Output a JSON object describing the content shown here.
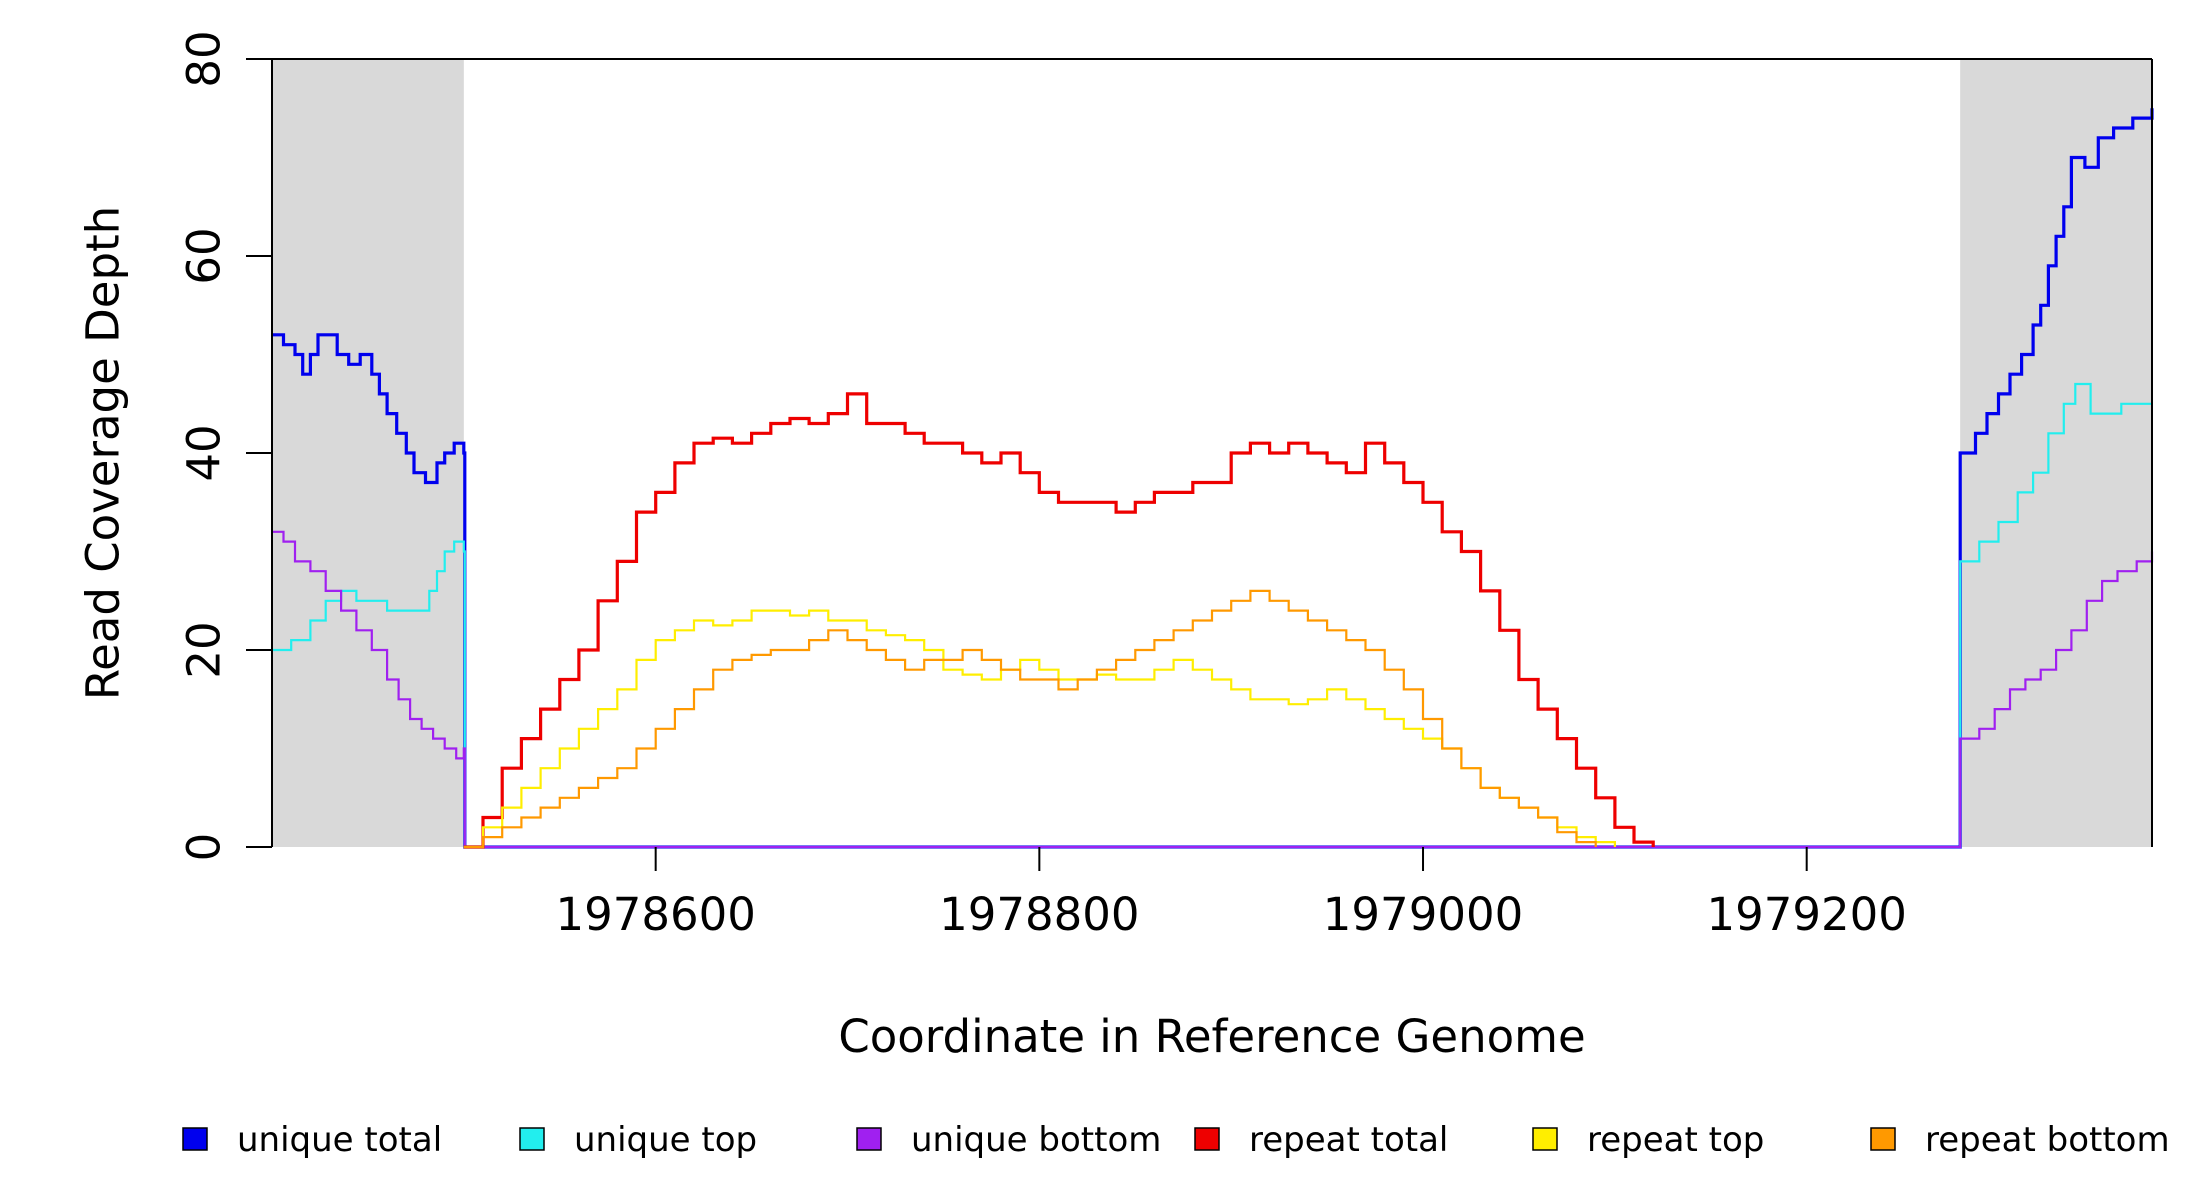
{
  "chart_data": {
    "type": "line",
    "title": "",
    "xlabel": "Coordinate in Reference Genome",
    "ylabel": "Read Coverage Depth",
    "xlim": [
      1978400,
      1979380
    ],
    "ylim": [
      0,
      80
    ],
    "x_ticks": [
      1978600,
      1978800,
      1979000,
      1979200
    ],
    "y_ticks": [
      0,
      20,
      40,
      60,
      80
    ],
    "grid": false,
    "legend": "bottom",
    "shaded_regions": [
      {
        "x0": 1978400,
        "x1": 1978500,
        "color": "#d9d9d9"
      },
      {
        "x0": 1979280,
        "x1": 1979380,
        "color": "#d9d9d9"
      }
    ],
    "series": [
      {
        "name": "unique total",
        "color": "#0000ee",
        "width": 3.2,
        "points": [
          [
            1978400,
            52
          ],
          [
            1978406,
            51
          ],
          [
            1978412,
            50
          ],
          [
            1978416,
            48
          ],
          [
            1978420,
            50
          ],
          [
            1978424,
            52
          ],
          [
            1978430,
            52
          ],
          [
            1978434,
            50
          ],
          [
            1978440,
            49
          ],
          [
            1978446,
            50
          ],
          [
            1978452,
            48
          ],
          [
            1978456,
            46
          ],
          [
            1978460,
            44
          ],
          [
            1978465,
            42
          ],
          [
            1978470,
            40
          ],
          [
            1978474,
            38
          ],
          [
            1978480,
            37
          ],
          [
            1978486,
            39
          ],
          [
            1978490,
            40
          ],
          [
            1978495,
            41
          ],
          [
            1978500,
            40
          ],
          [
            1978500.5,
            0
          ],
          [
            1979279.5,
            0
          ],
          [
            1979280,
            40
          ],
          [
            1979288,
            42
          ],
          [
            1979294,
            44
          ],
          [
            1979300,
            46
          ],
          [
            1979306,
            48
          ],
          [
            1979312,
            50
          ],
          [
            1979318,
            53
          ],
          [
            1979322,
            55
          ],
          [
            1979326,
            59
          ],
          [
            1979330,
            62
          ],
          [
            1979334,
            65
          ],
          [
            1979338,
            70
          ],
          [
            1979345,
            69
          ],
          [
            1979352,
            72
          ],
          [
            1979360,
            73
          ],
          [
            1979370,
            74
          ],
          [
            1979380,
            75
          ]
        ]
      },
      {
        "name": "unique top",
        "color": "#22eeee",
        "width": 2.2,
        "points": [
          [
            1978400,
            20
          ],
          [
            1978410,
            21
          ],
          [
            1978420,
            23
          ],
          [
            1978428,
            25
          ],
          [
            1978436,
            26
          ],
          [
            1978444,
            25
          ],
          [
            1978452,
            25
          ],
          [
            1978460,
            24
          ],
          [
            1978468,
            24
          ],
          [
            1978476,
            24
          ],
          [
            1978482,
            26
          ],
          [
            1978486,
            28
          ],
          [
            1978490,
            30
          ],
          [
            1978495,
            31
          ],
          [
            1978500,
            30
          ],
          [
            1978500.5,
            0
          ],
          [
            1979279.5,
            0
          ],
          [
            1979280,
            29
          ],
          [
            1979290,
            31
          ],
          [
            1979300,
            33
          ],
          [
            1979310,
            36
          ],
          [
            1979318,
            38
          ],
          [
            1979326,
            42
          ],
          [
            1979334,
            45
          ],
          [
            1979340,
            47
          ],
          [
            1979348,
            44
          ],
          [
            1979356,
            44
          ],
          [
            1979364,
            45
          ],
          [
            1979380,
            45
          ]
        ]
      },
      {
        "name": "unique bottom",
        "color": "#a020f0",
        "width": 2.2,
        "points": [
          [
            1978400,
            32
          ],
          [
            1978406,
            31
          ],
          [
            1978412,
            29
          ],
          [
            1978420,
            28
          ],
          [
            1978428,
            26
          ],
          [
            1978436,
            24
          ],
          [
            1978444,
            22
          ],
          [
            1978452,
            20
          ],
          [
            1978460,
            17
          ],
          [
            1978466,
            15
          ],
          [
            1978472,
            13
          ],
          [
            1978478,
            12
          ],
          [
            1978484,
            11
          ],
          [
            1978490,
            10
          ],
          [
            1978496,
            9
          ],
          [
            1978500,
            10
          ],
          [
            1978500.5,
            0
          ],
          [
            1979279.5,
            0
          ],
          [
            1979280,
            11
          ],
          [
            1979290,
            12
          ],
          [
            1979298,
            14
          ],
          [
            1979306,
            16
          ],
          [
            1979314,
            17
          ],
          [
            1979322,
            18
          ],
          [
            1979330,
            20
          ],
          [
            1979338,
            22
          ],
          [
            1979346,
            25
          ],
          [
            1979354,
            27
          ],
          [
            1979362,
            28
          ],
          [
            1979372,
            29
          ],
          [
            1979380,
            30
          ]
        ]
      },
      {
        "name": "repeat total",
        "color": "#ee0000",
        "width": 3.2,
        "points": [
          [
            1978500,
            0
          ],
          [
            1978510,
            3
          ],
          [
            1978520,
            8
          ],
          [
            1978530,
            11
          ],
          [
            1978540,
            14
          ],
          [
            1978550,
            17
          ],
          [
            1978560,
            20
          ],
          [
            1978570,
            25
          ],
          [
            1978580,
            29
          ],
          [
            1978590,
            34
          ],
          [
            1978600,
            36
          ],
          [
            1978610,
            39
          ],
          [
            1978620,
            41
          ],
          [
            1978630,
            41.5
          ],
          [
            1978640,
            41
          ],
          [
            1978650,
            42
          ],
          [
            1978660,
            43
          ],
          [
            1978670,
            43.5
          ],
          [
            1978680,
            43
          ],
          [
            1978690,
            44
          ],
          [
            1978700,
            46
          ],
          [
            1978710,
            43
          ],
          [
            1978720,
            43
          ],
          [
            1978730,
            42
          ],
          [
            1978740,
            41
          ],
          [
            1978750,
            41
          ],
          [
            1978760,
            40
          ],
          [
            1978770,
            39
          ],
          [
            1978780,
            40
          ],
          [
            1978790,
            38
          ],
          [
            1978800,
            36
          ],
          [
            1978810,
            35
          ],
          [
            1978820,
            35
          ],
          [
            1978830,
            35
          ],
          [
            1978840,
            34
          ],
          [
            1978850,
            35
          ],
          [
            1978860,
            36
          ],
          [
            1978870,
            36
          ],
          [
            1978880,
            37
          ],
          [
            1978890,
            37
          ],
          [
            1978900,
            40
          ],
          [
            1978910,
            41
          ],
          [
            1978920,
            40
          ],
          [
            1978930,
            41
          ],
          [
            1978940,
            40
          ],
          [
            1978950,
            39
          ],
          [
            1978960,
            38
          ],
          [
            1978970,
            41
          ],
          [
            1978980,
            39
          ],
          [
            1978990,
            37
          ],
          [
            1979000,
            35
          ],
          [
            1979010,
            32
          ],
          [
            1979020,
            30
          ],
          [
            1979030,
            26
          ],
          [
            1979040,
            22
          ],
          [
            1979050,
            17
          ],
          [
            1979060,
            14
          ],
          [
            1979070,
            11
          ],
          [
            1979080,
            8
          ],
          [
            1979090,
            5
          ],
          [
            1979100,
            2
          ],
          [
            1979110,
            0.5
          ],
          [
            1979120,
            0
          ]
        ]
      },
      {
        "name": "repeat top",
        "color": "#ffee00",
        "width": 2.2,
        "points": [
          [
            1978500,
            0
          ],
          [
            1978510,
            2
          ],
          [
            1978520,
            4
          ],
          [
            1978530,
            6
          ],
          [
            1978540,
            8
          ],
          [
            1978550,
            10
          ],
          [
            1978560,
            12
          ],
          [
            1978570,
            14
          ],
          [
            1978580,
            16
          ],
          [
            1978590,
            19
          ],
          [
            1978600,
            21
          ],
          [
            1978610,
            22
          ],
          [
            1978620,
            23
          ],
          [
            1978630,
            22.5
          ],
          [
            1978640,
            23
          ],
          [
            1978650,
            24
          ],
          [
            1978660,
            24
          ],
          [
            1978670,
            23.5
          ],
          [
            1978680,
            24
          ],
          [
            1978690,
            23
          ],
          [
            1978700,
            23
          ],
          [
            1978710,
            22
          ],
          [
            1978720,
            21.5
          ],
          [
            1978730,
            21
          ],
          [
            1978740,
            20
          ],
          [
            1978750,
            18
          ],
          [
            1978760,
            17.5
          ],
          [
            1978770,
            17
          ],
          [
            1978780,
            18
          ],
          [
            1978790,
            19
          ],
          [
            1978800,
            18
          ],
          [
            1978810,
            17
          ],
          [
            1978820,
            17
          ],
          [
            1978830,
            17.5
          ],
          [
            1978840,
            17
          ],
          [
            1978850,
            17
          ],
          [
            1978860,
            18
          ],
          [
            1978870,
            19
          ],
          [
            1978880,
            18
          ],
          [
            1978890,
            17
          ],
          [
            1978900,
            16
          ],
          [
            1978910,
            15
          ],
          [
            1978920,
            15
          ],
          [
            1978930,
            14.5
          ],
          [
            1978940,
            15
          ],
          [
            1978950,
            16
          ],
          [
            1978960,
            15
          ],
          [
            1978970,
            14
          ],
          [
            1978980,
            13
          ],
          [
            1978990,
            12
          ],
          [
            1979000,
            11
          ],
          [
            1979010,
            10
          ],
          [
            1979020,
            8
          ],
          [
            1979030,
            6
          ],
          [
            1979040,
            5
          ],
          [
            1979050,
            4
          ],
          [
            1979060,
            3
          ],
          [
            1979070,
            2
          ],
          [
            1979080,
            1
          ],
          [
            1979090,
            0.5
          ],
          [
            1979100,
            0
          ]
        ]
      },
      {
        "name": "repeat bottom",
        "color": "#ff9900",
        "width": 2.2,
        "points": [
          [
            1978500,
            0
          ],
          [
            1978510,
            1
          ],
          [
            1978520,
            2
          ],
          [
            1978530,
            3
          ],
          [
            1978540,
            4
          ],
          [
            1978550,
            5
          ],
          [
            1978560,
            6
          ],
          [
            1978570,
            7
          ],
          [
            1978580,
            8
          ],
          [
            1978590,
            10
          ],
          [
            1978600,
            12
          ],
          [
            1978610,
            14
          ],
          [
            1978620,
            16
          ],
          [
            1978630,
            18
          ],
          [
            1978640,
            19
          ],
          [
            1978650,
            19.5
          ],
          [
            1978660,
            20
          ],
          [
            1978670,
            20
          ],
          [
            1978680,
            21
          ],
          [
            1978690,
            22
          ],
          [
            1978700,
            21
          ],
          [
            1978710,
            20
          ],
          [
            1978720,
            19
          ],
          [
            1978730,
            18
          ],
          [
            1978740,
            19
          ],
          [
            1978750,
            19
          ],
          [
            1978760,
            20
          ],
          [
            1978770,
            19
          ],
          [
            1978780,
            18
          ],
          [
            1978790,
            17
          ],
          [
            1978800,
            17
          ],
          [
            1978810,
            16
          ],
          [
            1978820,
            17
          ],
          [
            1978830,
            18
          ],
          [
            1978840,
            19
          ],
          [
            1978850,
            20
          ],
          [
            1978860,
            21
          ],
          [
            1978870,
            22
          ],
          [
            1978880,
            23
          ],
          [
            1978890,
            24
          ],
          [
            1978900,
            25
          ],
          [
            1978910,
            26
          ],
          [
            1978920,
            25
          ],
          [
            1978930,
            24
          ],
          [
            1978940,
            23
          ],
          [
            1978950,
            22
          ],
          [
            1978960,
            21
          ],
          [
            1978970,
            20
          ],
          [
            1978980,
            18
          ],
          [
            1978990,
            16
          ],
          [
            1979000,
            13
          ],
          [
            1979010,
            10
          ],
          [
            1979020,
            8
          ],
          [
            1979030,
            6
          ],
          [
            1979040,
            5
          ],
          [
            1979050,
            4
          ],
          [
            1979060,
            3
          ],
          [
            1979070,
            1.5
          ],
          [
            1979080,
            0.5
          ],
          [
            1979090,
            0
          ]
        ]
      }
    ]
  }
}
